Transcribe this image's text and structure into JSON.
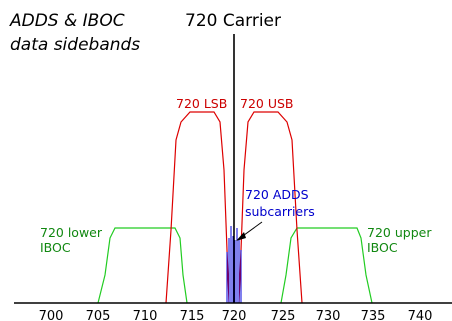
{
  "title_lines": [
    "ADDS & IBOC",
    "data sidebands"
  ],
  "carrier_title": "720 Carrier",
  "labels": {
    "lsb": "720 LSB",
    "usb": "720 USB",
    "adds_line1": "720 ADDS",
    "adds_line2": "subcarriers",
    "lower_iboc_line1": "720 lower",
    "lower_iboc_line2": "IBOC",
    "upper_iboc_line1": "720 upper",
    "upper_iboc_line2": "IBOC"
  },
  "x_ticks": [
    "700",
    "705",
    "710",
    "715",
    "720",
    "725",
    "730",
    "735",
    "740"
  ],
  "colors": {
    "carrier": "#000000",
    "sideband": "#dd0000",
    "iboc": "#22cc22",
    "adds": "#0000dd",
    "adds_label": "#0000cc",
    "iboc_label": "#118811",
    "sideband_label": "#cc0000"
  }
}
